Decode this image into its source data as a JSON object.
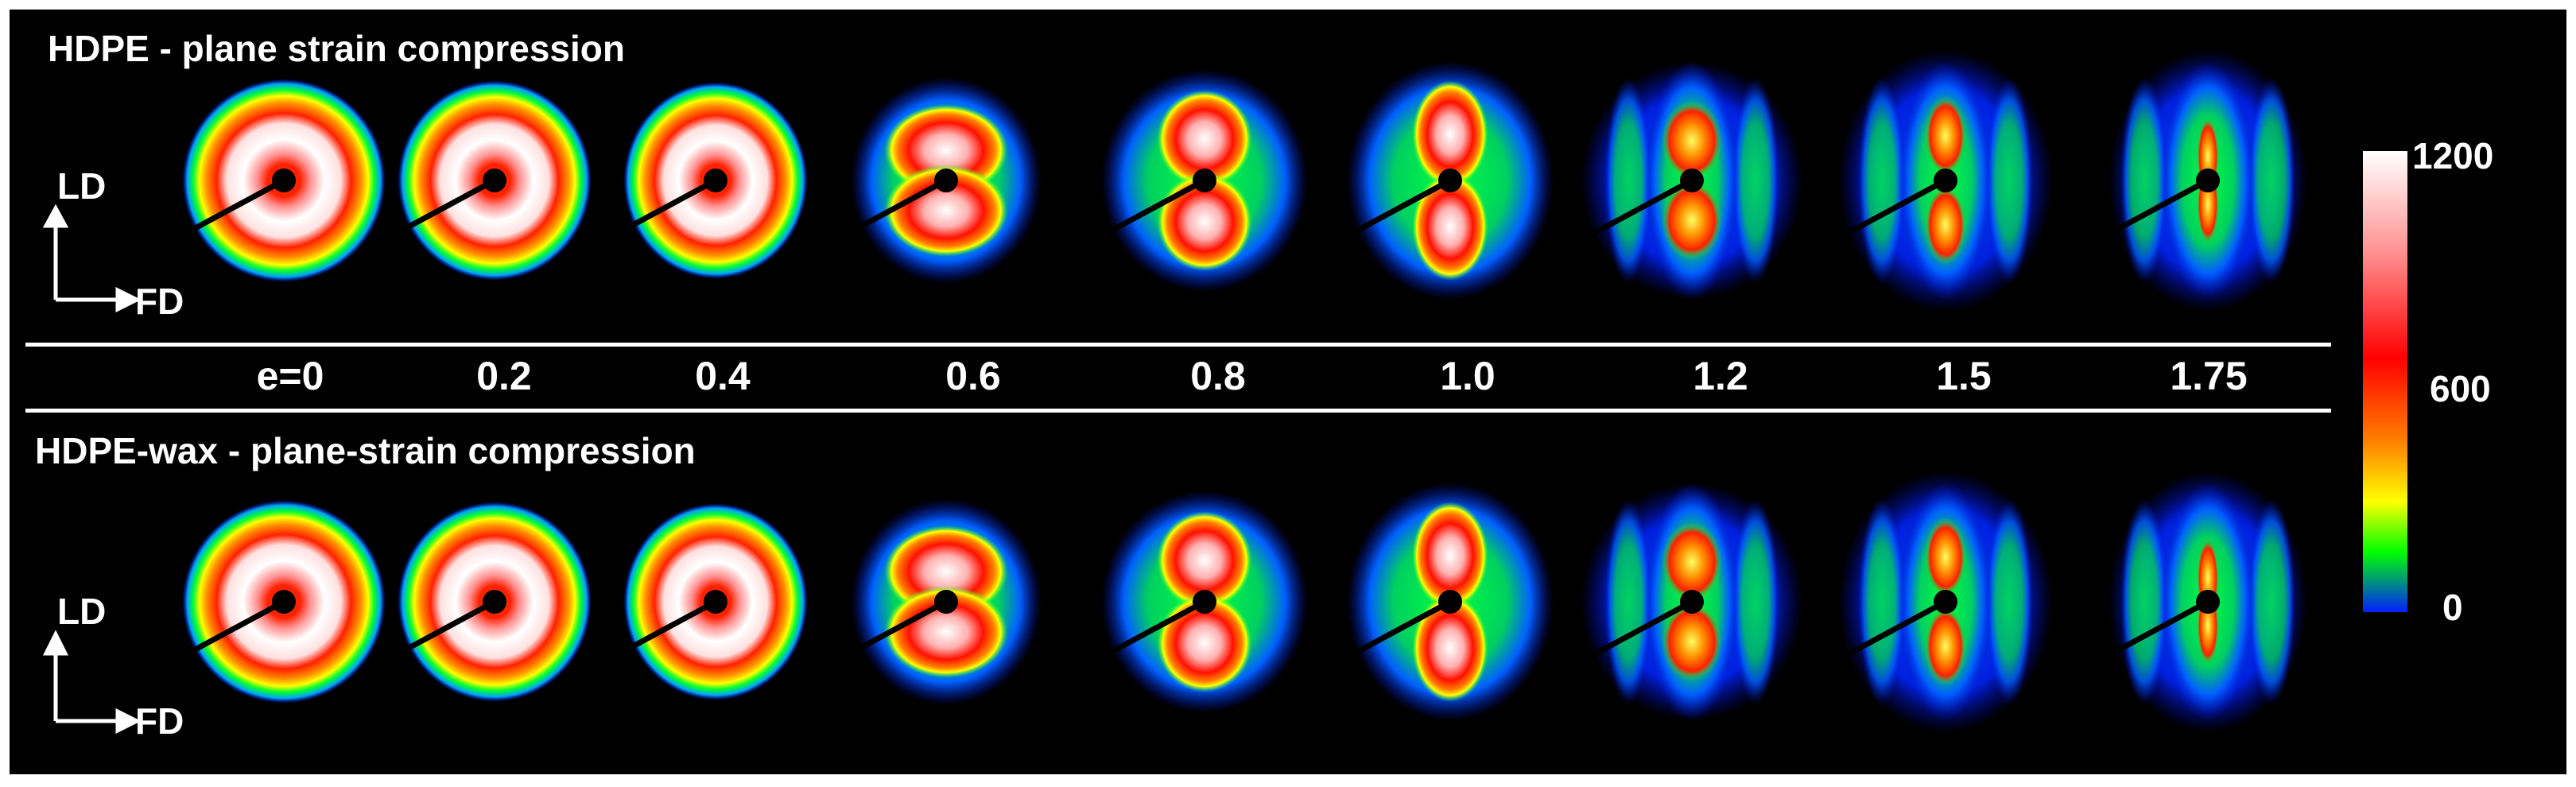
{
  "rows": [
    {
      "title": "HDPE - plane strain compression",
      "pattern_set": "hdpe"
    },
    {
      "title": "HDPE-wax - plane-strain compression",
      "pattern_set": "wax"
    }
  ],
  "axes": {
    "vertical": "LD",
    "horizontal": "FD"
  },
  "strains": [
    "e=0",
    "0.2",
    "0.4",
    "0.6",
    "0.8",
    "1.0",
    "1.2",
    "1.5",
    "1.75"
  ],
  "colorbar": {
    "max": "1200",
    "mid": "600",
    "min": "0",
    "colors": [
      "#ffffff",
      "#ff8080",
      "#ff0000",
      "#ff8000",
      "#ffff00",
      "#00ff00",
      "#0020ff"
    ]
  }
}
